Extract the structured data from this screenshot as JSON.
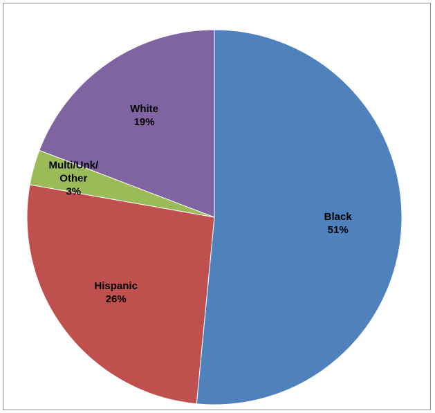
{
  "chart_data": {
    "type": "pie",
    "title": "",
    "slices": [
      {
        "name": "Black",
        "value": 51,
        "label_lines": [
          "Black",
          "51%"
        ],
        "color": "#4f81bd"
      },
      {
        "name": "Hispanic",
        "value": 26,
        "label_lines": [
          "Hispanic",
          "26%"
        ],
        "color": "#c0504d"
      },
      {
        "name": "Multi/Unk/Other",
        "value": 3,
        "label_lines": [
          "Multi/Unk/",
          "Other",
          "3%"
        ],
        "color": "#9bbb59"
      },
      {
        "name": "White",
        "value": 19,
        "label_lines": [
          "White",
          "19%"
        ],
        "color": "#8064a2"
      }
    ],
    "start_angle_deg": 0,
    "direction": "clockwise",
    "legend": "none",
    "data_labels": "inside"
  }
}
